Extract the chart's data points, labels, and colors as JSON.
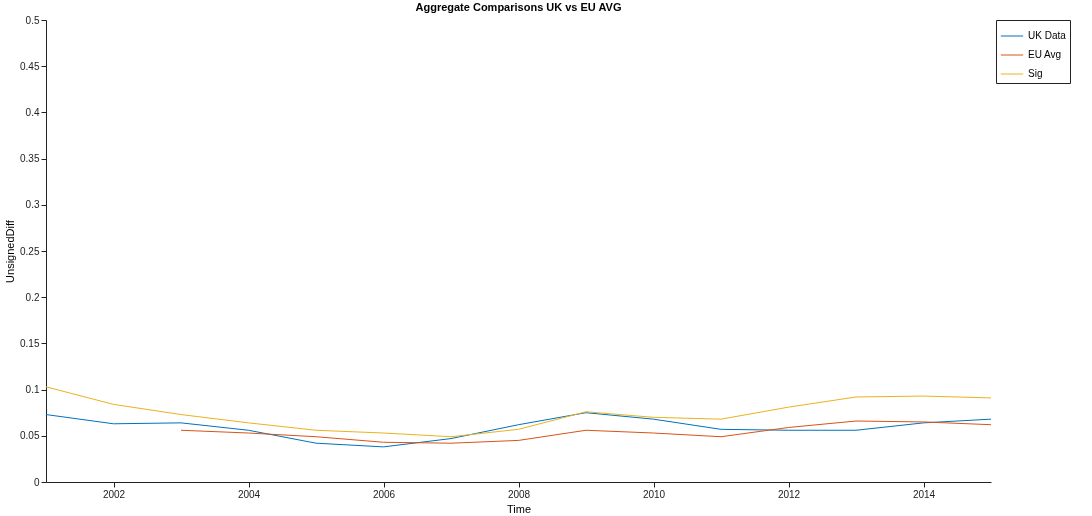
{
  "chart_data": {
    "type": "line",
    "title": "Aggregate Comparisons UK vs EU AVG",
    "xlabel": "Time",
    "ylabel": "UnsignedDiff",
    "x": [
      2001,
      2002,
      2003,
      2004,
      2005,
      2006,
      2007,
      2008,
      2009,
      2010,
      2011,
      2012,
      2013,
      2014,
      2015
    ],
    "series": [
      {
        "name": "UK Data",
        "color": "#0072bd",
        "values": [
          0.073,
          0.063,
          0.064,
          0.056,
          0.042,
          0.038,
          0.047,
          0.062,
          0.075,
          0.068,
          0.057,
          0.056,
          0.056,
          0.064,
          0.068
        ]
      },
      {
        "name": "EU Avg",
        "color": "#d95319",
        "values": [
          null,
          null,
          0.056,
          0.053,
          0.049,
          0.043,
          0.042,
          0.045,
          0.056,
          0.053,
          0.049,
          0.059,
          0.066,
          0.065,
          0.062
        ]
      },
      {
        "name": "Sig",
        "color": "#edb120",
        "values": [
          0.103,
          0.084,
          0.073,
          0.064,
          0.056,
          0.053,
          0.049,
          0.057,
          0.076,
          0.07,
          0.068,
          0.081,
          0.092,
          0.093,
          0.091
        ]
      }
    ],
    "xlim": [
      2001,
      2015
    ],
    "xticks": [
      2002,
      2004,
      2006,
      2008,
      2010,
      2012,
      2014
    ],
    "ylim": [
      0,
      0.5
    ],
    "yticks": [
      0,
      0.05,
      0.1,
      0.15,
      0.2,
      0.25,
      0.3,
      0.35,
      0.4,
      0.45,
      0.5
    ],
    "grid": false,
    "legend": "top right"
  }
}
